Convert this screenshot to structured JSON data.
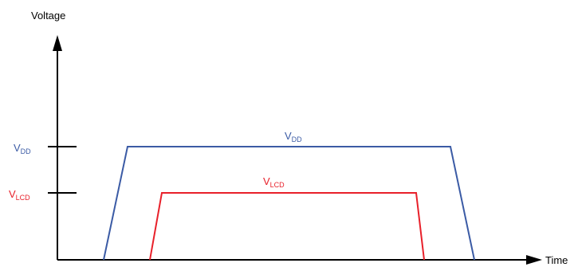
{
  "axes": {
    "y_label": "Voltage",
    "x_label": "Time"
  },
  "levels": {
    "vdd": {
      "main": "V",
      "sub": "DD",
      "color": "#3b5ba5"
    },
    "vlcd": {
      "main": "V",
      "sub": "LCD",
      "color": "#e8202a"
    }
  },
  "colors": {
    "axis": "#000000",
    "vdd_trace": "#3b5ba5",
    "vlcd_trace": "#e8202a"
  }
}
